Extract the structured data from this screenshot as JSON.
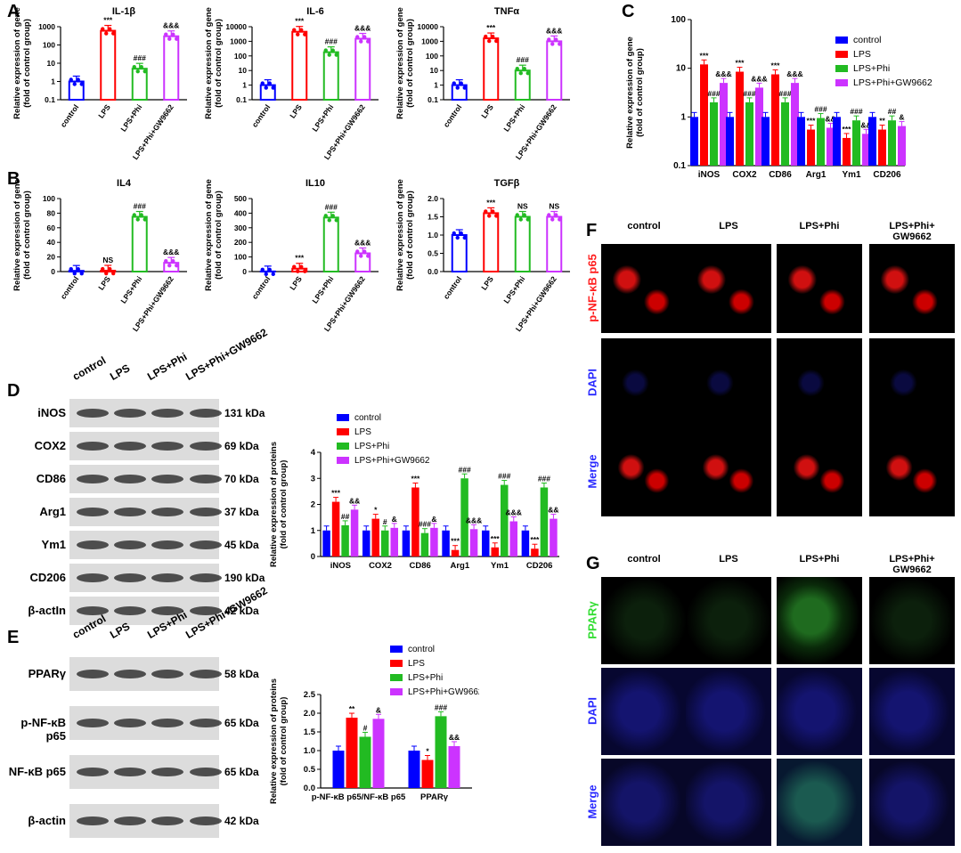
{
  "colors": {
    "control": "#0000ff",
    "LPS": "#ff0000",
    "LPS+Phi": "#22bb22",
    "LPS+Phi+GW9662": "#cc33ff"
  },
  "letters": {
    "A": "A",
    "B": "B",
    "C": "C",
    "D": "D",
    "E": "E",
    "F": "F",
    "G": "G"
  },
  "group_labels": [
    "control",
    "LPS",
    "LPS+Phi",
    "LPS+Phi+GW9662"
  ],
  "chart_data": [
    {
      "id": "a1",
      "type": "bar",
      "title": "IL-1β",
      "log": true,
      "ylim": [
        0.1,
        1000
      ],
      "ticks": [
        "0.1",
        "1",
        "10",
        "100",
        "1000"
      ],
      "tickvals": [
        0.1,
        1,
        10,
        100,
        1000
      ],
      "ylabel": "Relative expression of gene\n(fold of control group)",
      "categories": [
        "control",
        "LPS",
        "LPS+Phi",
        "LPS+Phi+GW9662"
      ],
      "values": [
        1,
        600,
        5,
        300
      ],
      "annotations": [
        "",
        "***",
        "###",
        "&&&"
      ]
    },
    {
      "id": "a2",
      "type": "bar",
      "title": "IL-6",
      "log": true,
      "ylim": [
        0.1,
        10000
      ],
      "ticks": [
        "0.1",
        "1",
        "10",
        "100",
        "1000",
        "10000"
      ],
      "tickvals": [
        0.1,
        1,
        10,
        100,
        1000,
        10000
      ],
      "ylabel": "Relative expression of gene\n(fold of control group)",
      "categories": [
        "control",
        "LPS",
        "LPS+Phi",
        "LPS+Phi+GW9662"
      ],
      "values": [
        1,
        4500,
        180,
        1500
      ],
      "annotations": [
        "",
        "***",
        "###",
        "&&&"
      ]
    },
    {
      "id": "a3",
      "type": "bar",
      "title": "TNFα",
      "log": true,
      "ylim": [
        0.1,
        10000
      ],
      "ticks": [
        "0.1",
        "1",
        "10",
        "100",
        "1000",
        "10000"
      ],
      "tickvals": [
        0.1,
        1,
        10,
        100,
        1000,
        10000
      ],
      "ylabel": "Relative expression of gene\n(fold of control group)",
      "categories": [
        "control",
        "LPS",
        "LPS+Phi",
        "LPS+Phi+GW9662"
      ],
      "values": [
        1,
        1600,
        10,
        1000
      ],
      "annotations": [
        "",
        "***",
        "###",
        "&&&"
      ]
    },
    {
      "id": "b1",
      "type": "bar",
      "title": "IL4",
      "log": false,
      "ylim": [
        0,
        100
      ],
      "ticks": [
        "0",
        "20",
        "40",
        "60",
        "80",
        "100"
      ],
      "tickvals": [
        0,
        20,
        40,
        60,
        80,
        100
      ],
      "ylabel": "Relative expression of gene\n(fold of control group)",
      "categories": [
        "control",
        "LPS",
        "LPS+Phi",
        "LPS+Phi+GW9662"
      ],
      "values": [
        1,
        1.2,
        75,
        12
      ],
      "annotations": [
        "",
        "NS",
        "###",
        "&&&"
      ]
    },
    {
      "id": "b2",
      "type": "bar",
      "title": "IL10",
      "log": false,
      "ylim": [
        0,
        500
      ],
      "ticks": [
        "0",
        "100",
        "200",
        "300",
        "400",
        "500"
      ],
      "tickvals": [
        0,
        100,
        200,
        300,
        400,
        500
      ],
      "ylabel": "Relative expression of gene\n(fold of control group)",
      "categories": [
        "control",
        "LPS",
        "LPS+Phi",
        "LPS+Phi+GW9662"
      ],
      "values": [
        1,
        20,
        370,
        125
      ],
      "annotations": [
        "",
        "***",
        "###",
        "&&&"
      ]
    },
    {
      "id": "b3",
      "type": "bar",
      "title": "TGFβ",
      "log": false,
      "ylim": [
        0,
        2.0
      ],
      "ticks": [
        "0.0",
        "0.5",
        "1.0",
        "1.5",
        "2.0"
      ],
      "tickvals": [
        0,
        0.5,
        1,
        1.5,
        2
      ],
      "ylabel": "Relative expression of gene\n(fold of control group)",
      "categories": [
        "control",
        "LPS",
        "LPS+Phi",
        "LPS+Phi+GW9662"
      ],
      "values": [
        1,
        1.6,
        1.5,
        1.5
      ],
      "annotations": [
        "",
        "***",
        "NS",
        "NS"
      ]
    },
    {
      "id": "c",
      "type": "bar",
      "log": true,
      "ylim": [
        0.1,
        100
      ],
      "ticks": [
        "0.1",
        "1",
        "10",
        "100"
      ],
      "tickvals": [
        0.1,
        1,
        10,
        100
      ],
      "ylabel": "Relative expression of gene\n(fold of control group)",
      "categories": [
        "iNOS",
        "COX2",
        "CD86",
        "Arg1",
        "Ym1",
        "CD206"
      ],
      "legend": [
        "control",
        "LPS",
        "LPS+Phi",
        "LPS+Phi+GW9662"
      ],
      "series": [
        {
          "name": "control",
          "values": [
            1,
            1,
            1,
            1,
            1,
            1
          ]
        },
        {
          "name": "LPS",
          "values": [
            12,
            8.5,
            7.5,
            0.55,
            0.37,
            0.55
          ]
        },
        {
          "name": "LPS+Phi",
          "values": [
            2,
            2,
            2,
            0.95,
            0.85,
            0.85
          ]
        },
        {
          "name": "LPS+Phi+GW9662",
          "values": [
            5,
            4,
            5,
            0.6,
            0.45,
            0.65
          ]
        }
      ],
      "annotations": [
        [
          "",
          "***",
          "###",
          "&&&"
        ],
        [
          "",
          "***",
          "###",
          "&&&"
        ],
        [
          "",
          "***",
          "###",
          "&&&"
        ],
        [
          "",
          "***",
          "###",
          "&&"
        ],
        [
          "",
          "***",
          "###",
          "&&"
        ],
        [
          "",
          "**",
          "##",
          "&"
        ]
      ]
    },
    {
      "id": "d",
      "type": "bar",
      "log": false,
      "ylim": [
        0,
        4
      ],
      "ticks": [
        "0",
        "1",
        "2",
        "3",
        "4"
      ],
      "tickvals": [
        0,
        1,
        2,
        3,
        4
      ],
      "ylabel": "Relative expression of proteins\n(fold of control group)",
      "categories": [
        "iNOS",
        "COX2",
        "CD86",
        "Arg1",
        "Ym1",
        "CD206"
      ],
      "legend": [
        "control",
        "LPS",
        "LPS+Phi",
        "LPS+Phi+GW9662"
      ],
      "series": [
        {
          "name": "control",
          "values": [
            1,
            1,
            1,
            1,
            1,
            1
          ]
        },
        {
          "name": "LPS",
          "values": [
            2.1,
            1.45,
            2.65,
            0.25,
            0.35,
            0.3
          ]
        },
        {
          "name": "LPS+Phi",
          "values": [
            1.2,
            1.0,
            0.9,
            3.0,
            2.75,
            2.65
          ]
        },
        {
          "name": "LPS+Phi+GW9662",
          "values": [
            1.8,
            1.1,
            1.1,
            1.05,
            1.35,
            1.45
          ]
        }
      ],
      "annotations": [
        [
          "",
          "***",
          "##",
          "&&"
        ],
        [
          "",
          "*",
          "#",
          "&"
        ],
        [
          "",
          "***",
          "###",
          "&"
        ],
        [
          "",
          "***",
          "###",
          "&&&"
        ],
        [
          "",
          "***",
          "###",
          "&&&"
        ],
        [
          "",
          "***",
          "###",
          "&&"
        ]
      ]
    },
    {
      "id": "e",
      "type": "bar",
      "log": false,
      "ylim": [
        0,
        2.5
      ],
      "ticks": [
        "0.0",
        "0.5",
        "1.0",
        "1.5",
        "2.0",
        "2.5"
      ],
      "tickvals": [
        0,
        0.5,
        1,
        1.5,
        2,
        2.5
      ],
      "ylabel": "Relative expression of proteins\n(fold of control group)",
      "categories": [
        "p-NF-κB p65/NF-κB p65",
        "PPARγ"
      ],
      "legend": [
        "control",
        "LPS",
        "LPS+Phi",
        "LPS+Phi+GW9662"
      ],
      "series": [
        {
          "name": "control",
          "values": [
            1.0,
            1.0
          ]
        },
        {
          "name": "LPS",
          "values": [
            1.88,
            0.75
          ]
        },
        {
          "name": "LPS+Phi",
          "values": [
            1.37,
            1.92
          ]
        },
        {
          "name": "LPS+Phi+GW9662",
          "values": [
            1.85,
            1.12
          ]
        }
      ],
      "annotations": [
        [
          "",
          "**",
          "#",
          "&"
        ],
        [
          "",
          "*",
          "###",
          "&&"
        ]
      ]
    }
  ],
  "blot_d": {
    "lanes": [
      "control",
      "LPS",
      "LPS+Phi",
      "LPS+Phi+\nGW9662"
    ],
    "rows": [
      {
        "label": "iNOS",
        "kda": "131 kDa"
      },
      {
        "label": "COX2",
        "kda": "69 kDa"
      },
      {
        "label": "CD86",
        "kda": "70 kDa"
      },
      {
        "label": "Arg1",
        "kda": "37 kDa"
      },
      {
        "label": "Ym1",
        "kda": "45 kDa"
      },
      {
        "label": "CD206",
        "kda": "190 kDa"
      },
      {
        "label": "β-actIn",
        "kda": "42 kDa"
      }
    ]
  },
  "blot_e": {
    "lanes": [
      "control",
      "LPS",
      "LPS+Phi",
      "LPS+Phi+\nGW9662"
    ],
    "rows": [
      {
        "label": "PPARγ",
        "kda": "58 kDa"
      },
      {
        "label": "p-NF-κB p65",
        "kda": "65 kDa"
      },
      {
        "label": "NF-κB p65",
        "kda": "65 kDa"
      },
      {
        "label": "β-actin",
        "kda": "42 kDa"
      }
    ]
  },
  "micro_f": {
    "cols": [
      "control",
      "LPS",
      "LPS+Phi",
      "LPS+Phi+\nGW9662"
    ],
    "rows": [
      "p-NF-κB p65",
      "DAPI",
      "Merge"
    ],
    "row_colors": [
      "#ff2020",
      "#2a2aff",
      "#2a2aff"
    ]
  },
  "micro_g": {
    "cols": [
      "control",
      "LPS",
      "LPS+Phi",
      "LPS+Phi+\nGW9662"
    ],
    "rows": [
      "PPARγ",
      "DAPI",
      "Merge"
    ],
    "row_colors": [
      "#33dd33",
      "#2a2aff",
      "#2a2aff"
    ]
  }
}
